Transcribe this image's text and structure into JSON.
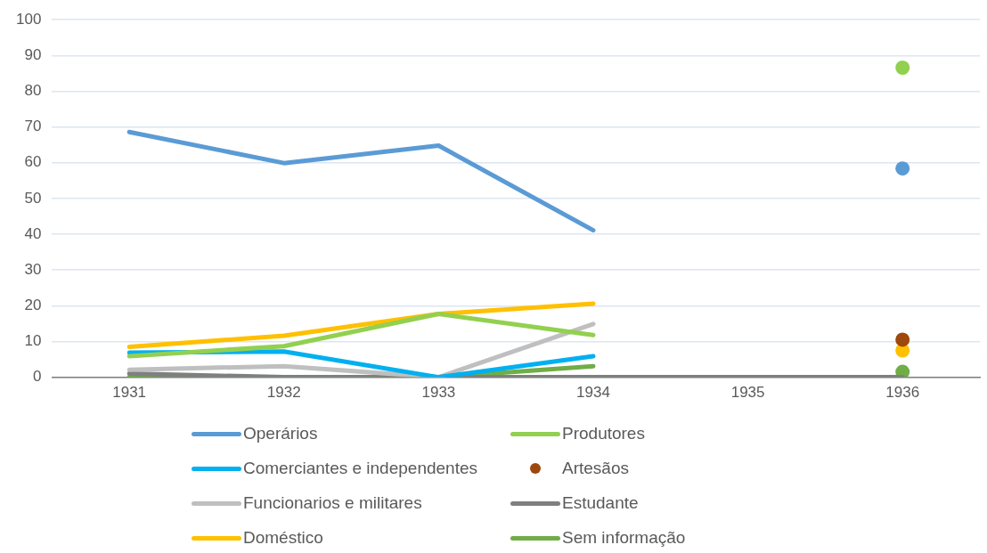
{
  "chart_data": {
    "type": "line",
    "categories": [
      "1931",
      "1932",
      "1933",
      "1934",
      "1935",
      "1936"
    ],
    "ylim": [
      0,
      100
    ],
    "yticks": [
      0,
      10,
      20,
      30,
      40,
      50,
      60,
      70,
      80,
      90,
      100
    ],
    "grid": "y",
    "legend": "bottom",
    "series": [
      {
        "name": "Operários",
        "color": "#5b9bd5",
        "values": [
          68.6,
          59.9,
          64.8,
          41.1,
          null,
          58.4
        ]
      },
      {
        "name": "Produtores",
        "color": "#92d050",
        "values": [
          5.9,
          8.7,
          17.7,
          11.8,
          null,
          86.6
        ]
      },
      {
        "name": "Comerciantes e independentes",
        "color": "#00b0f0",
        "values": [
          6.9,
          7.2,
          0,
          5.9,
          null,
          null
        ]
      },
      {
        "name": "Artesãos",
        "color": "#9e480e",
        "marker": "circle",
        "values": [
          null,
          null,
          null,
          null,
          null,
          10.5
        ]
      },
      {
        "name": "Funcionarios e militares",
        "color": "#bfbfbf",
        "values": [
          2.1,
          3.1,
          0,
          14.9,
          null,
          null
        ]
      },
      {
        "name": "Estudante",
        "color": "#7f7f7f",
        "values": [
          1,
          0,
          0,
          0,
          0,
          0
        ]
      },
      {
        "name": "Doméstico",
        "color": "#ffc000",
        "values": [
          8.5,
          11.6,
          17.7,
          20.6,
          null,
          7.5
        ]
      },
      {
        "name": "Sem informação",
        "color": "#70ad47",
        "values": [
          0,
          0,
          0,
          3.1,
          null,
          1.5
        ]
      }
    ]
  }
}
